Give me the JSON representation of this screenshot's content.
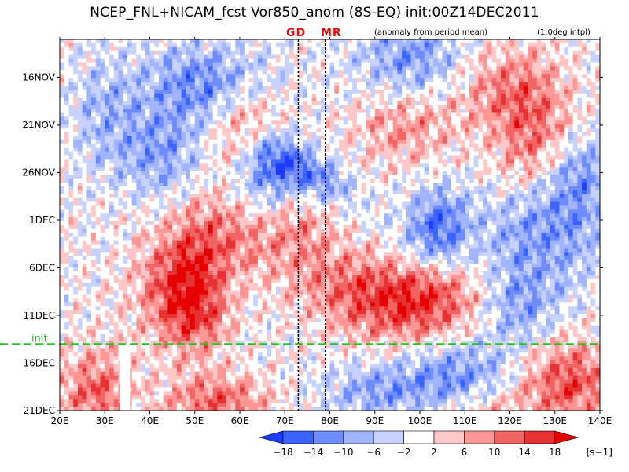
{
  "header": {
    "title": "NCEP_FNL+NICAM_fcst Vor850_anom (8S-EQ) init:00Z14DEC2011",
    "markers": [
      "GD",
      "MR"
    ],
    "note": "(anomaly from period mean)",
    "interp": "(1.0deg intpl)",
    "init_label": "init"
  },
  "chart_data": {
    "type": "heatmap",
    "title": "NCEP_FNL+NICAM_fcst Vor850_anom (8S-EQ) init:00Z14DEC2011",
    "x_ticks": [
      "20E",
      "30E",
      "40E",
      "50E",
      "60E",
      "70E",
      "80E",
      "90E",
      "100E",
      "110E",
      "120E",
      "130E",
      "140E"
    ],
    "x_range": [
      20,
      140
    ],
    "y_ticks": [
      "16NOV",
      "21NOV",
      "26NOV",
      "1DEC",
      "6DEC",
      "11DEC",
      "16DEC",
      "21DEC"
    ],
    "y_tick_days": [
      4,
      9,
      14,
      19,
      24,
      29,
      34,
      39
    ],
    "y_range_days": [
      0,
      39
    ],
    "init_day": 32,
    "marker_lons": [
      {
        "label": "GD",
        "lon": 73
      },
      {
        "label": "MR",
        "lon": 79
      }
    ],
    "colorbar": {
      "levels": [
        "−18",
        "−14",
        "−10",
        "−6",
        "−2",
        "2",
        "6",
        "10",
        "14",
        "18"
      ],
      "unit": "[s−1]",
      "colors": [
        "#1e3cff",
        "#3c64ff",
        "#6e8cff",
        "#a0b4ff",
        "#c8d2ff",
        "#ffffff",
        "#ffc8c8",
        "#ff9696",
        "#f06464",
        "#e63232",
        "#e60000"
      ]
    }
  }
}
